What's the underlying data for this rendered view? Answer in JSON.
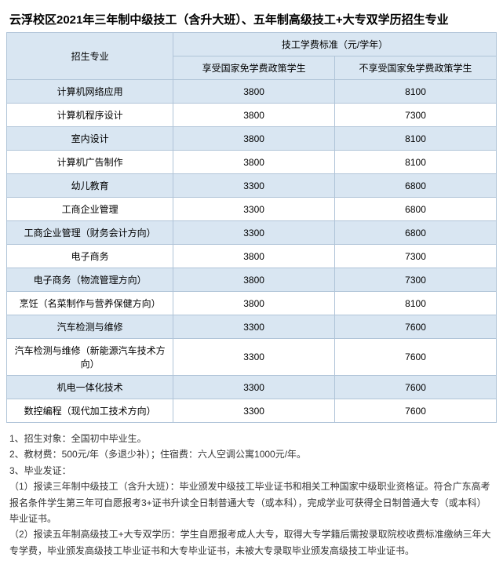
{
  "title": "云浮校区2021年三年制中级技工（含升大班）、五年制高级技工+大专双学历招生专业",
  "header": {
    "major": "招生专业",
    "fee_group": "技工学费标准（元/学年）",
    "fee_free": "享受国家免学费政策学生",
    "fee_paid": "不享受国家免学费政策学生"
  },
  "rows": [
    {
      "major": "计算机网络应用",
      "free": "3800",
      "paid": "8100"
    },
    {
      "major": "计算机程序设计",
      "free": "3800",
      "paid": "7300"
    },
    {
      "major": "室内设计",
      "free": "3800",
      "paid": "8100"
    },
    {
      "major": "计算机广告制作",
      "free": "3800",
      "paid": "8100"
    },
    {
      "major": "幼儿教育",
      "free": "3300",
      "paid": "6800"
    },
    {
      "major": "工商企业管理",
      "free": "3300",
      "paid": "6800"
    },
    {
      "major": "工商企业管理（财务会计方向）",
      "free": "3300",
      "paid": "6800"
    },
    {
      "major": "电子商务",
      "free": "3800",
      "paid": "7300"
    },
    {
      "major": "电子商务（物流管理方向）",
      "free": "3800",
      "paid": "7300"
    },
    {
      "major": "烹饪（名菜制作与营养保健方向）",
      "free": "3800",
      "paid": "8100"
    },
    {
      "major": "汽车检测与维修",
      "free": "3300",
      "paid": "7600"
    },
    {
      "major": "汽车检测与维修（新能源汽车技术方向）",
      "free": "3300",
      "paid": "7600"
    },
    {
      "major": "机电一体化技术",
      "free": "3300",
      "paid": "7600"
    },
    {
      "major": "数控编程（现代加工技术方向）",
      "free": "3300",
      "paid": "7600"
    }
  ],
  "notes": [
    "1、招生对象：全国初中毕业生。",
    "2、教材费：500元/年（多退少补）；住宿费：六人空调公寓1000元/年。",
    "3、毕业发证：",
    "（1）报读三年制中级技工（含升大班）：毕业颁发中级技工毕业证书和相关工种国家中级职业资格证。符合广东高考报名条件学生第三年可自愿报考3+证书升读全日制普通大专（或本科），完成学业可获得全日制普通大专（或本科）毕业证书。",
    "（2）报读五年制高级技工+大专双学历：学生自愿报考成人大专，取得大专学籍后需按录取院校收费标准缴纳三年大专学费，毕业颁发高级技工毕业证书和大专毕业证书，未被大专录取毕业颁发高级技工毕业证书。"
  ]
}
